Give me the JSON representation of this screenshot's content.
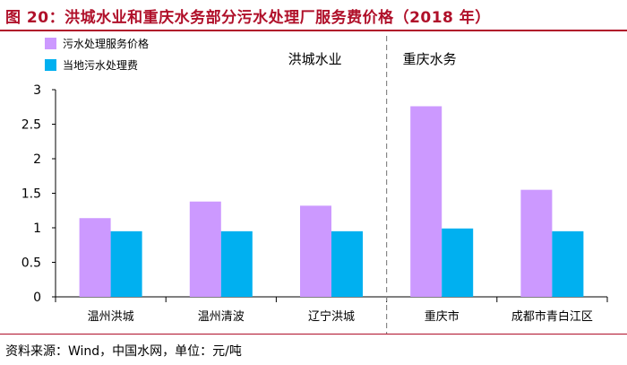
{
  "figure_title": "图 20：洪城水业和重庆水务部分污水处理厂服务费价格（2018 年）",
  "source": "资料来源：Wind，中国水网，单位：元/吨",
  "colors": {
    "title": "#b0102a",
    "series_1": "#cc99ff",
    "series_2": "#00b0f0"
  },
  "chart_data": {
    "type": "bar",
    "categories": [
      "温州洪城",
      "温州清波",
      "辽宁洪城",
      "重庆市",
      "成都市青白江区"
    ],
    "series": [
      {
        "name": "污水处理服务价格",
        "values": [
          1.14,
          1.38,
          1.32,
          2.76,
          1.55
        ]
      },
      {
        "name": "当地污水处理费",
        "values": [
          0.95,
          0.95,
          0.95,
          0.99,
          0.95
        ]
      }
    ],
    "ylim": [
      0,
      3
    ],
    "yticks": [
      "0",
      "0.5",
      "1",
      "1.5",
      "2",
      "2.5",
      "3"
    ],
    "groups": [
      {
        "label": "洪城水业",
        "categories": 3
      },
      {
        "label": "重庆水务",
        "categories": 2
      }
    ],
    "legend_position": "top-left",
    "grid": false
  }
}
